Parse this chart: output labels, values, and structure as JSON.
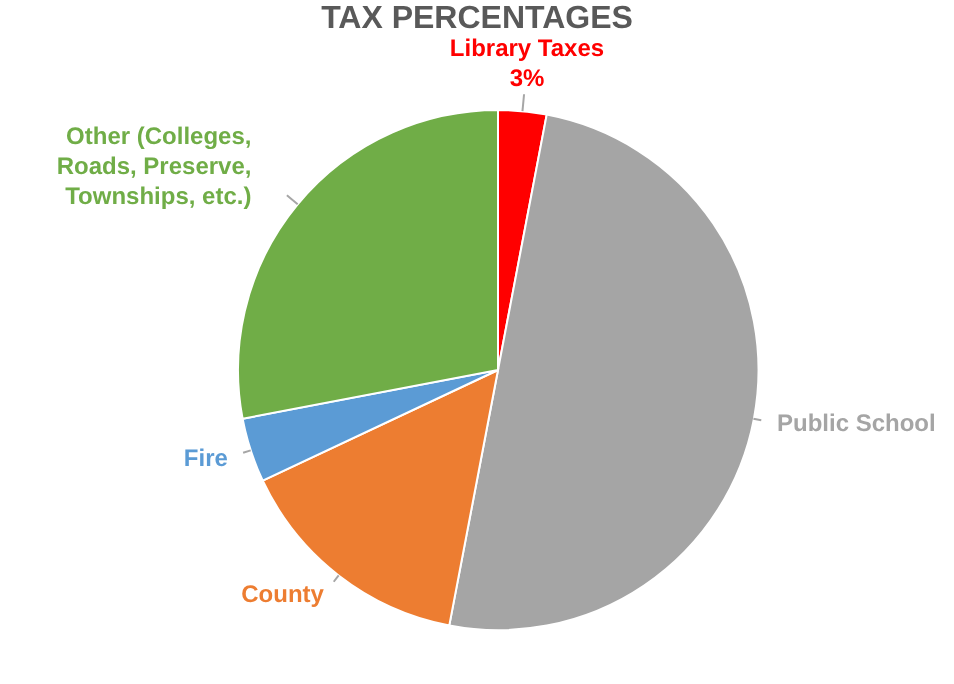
{
  "chart_data": {
    "type": "pie",
    "title": "TAX PERCENTAGES",
    "categories": [
      "Library Taxes",
      "Public School",
      "County",
      "Fire",
      "Other (Colleges, Roads, Preserve, Townships, etc.)"
    ],
    "values": [
      3,
      50,
      15,
      4,
      28
    ],
    "colors": [
      "#ff0000",
      "#a5a5a5",
      "#ed7d31",
      "#5b9bd5",
      "#70ad47"
    ],
    "value_labels": [
      "3%",
      null,
      null,
      null,
      null
    ]
  }
}
